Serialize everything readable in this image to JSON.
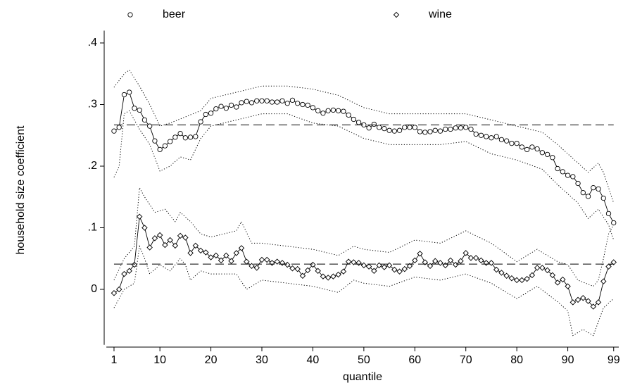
{
  "chart_data": {
    "type": "line",
    "x_label": "quantile",
    "y_label": "household size coefficient",
    "x": [
      1,
      2,
      3,
      4,
      5,
      6,
      7,
      8,
      9,
      10,
      11,
      12,
      13,
      14,
      15,
      16,
      17,
      18,
      19,
      20,
      21,
      22,
      23,
      24,
      25,
      26,
      27,
      28,
      29,
      30,
      31,
      32,
      33,
      34,
      35,
      36,
      37,
      38,
      39,
      40,
      41,
      42,
      43,
      44,
      45,
      46,
      47,
      48,
      49,
      50,
      51,
      52,
      53,
      54,
      55,
      56,
      57,
      58,
      59,
      60,
      61,
      62,
      63,
      64,
      65,
      66,
      67,
      68,
      69,
      70,
      71,
      72,
      73,
      74,
      75,
      76,
      77,
      78,
      79,
      80,
      81,
      82,
      83,
      84,
      85,
      86,
      87,
      88,
      89,
      90,
      91,
      92,
      93,
      94,
      95,
      96,
      97,
      98,
      99
    ],
    "series": [
      {
        "name": "beer",
        "marker": "circle",
        "color": "#000000",
        "values": [
          0.257,
          0.263,
          0.316,
          0.32,
          0.294,
          0.291,
          0.275,
          0.265,
          0.241,
          0.227,
          0.233,
          0.24,
          0.247,
          0.253,
          0.246,
          0.247,
          0.248,
          0.272,
          0.284,
          0.286,
          0.293,
          0.297,
          0.294,
          0.299,
          0.296,
          0.303,
          0.305,
          0.303,
          0.306,
          0.306,
          0.306,
          0.304,
          0.304,
          0.306,
          0.302,
          0.307,
          0.302,
          0.3,
          0.299,
          0.295,
          0.29,
          0.286,
          0.29,
          0.291,
          0.29,
          0.289,
          0.283,
          0.276,
          0.271,
          0.267,
          0.262,
          0.268,
          0.263,
          0.261,
          0.258,
          0.257,
          0.258,
          0.263,
          0.263,
          0.263,
          0.256,
          0.255,
          0.256,
          0.258,
          0.257,
          0.26,
          0.26,
          0.262,
          0.262,
          0.263,
          0.26,
          0.252,
          0.25,
          0.248,
          0.246,
          0.248,
          0.243,
          0.241,
          0.237,
          0.237,
          0.231,
          0.227,
          0.231,
          0.228,
          0.222,
          0.219,
          0.214,
          0.196,
          0.191,
          0.185,
          0.183,
          0.172,
          0.157,
          0.151,
          0.165,
          0.163,
          0.148,
          0.123,
          0.108
        ]
      },
      {
        "name": "wine",
        "marker": "diamond",
        "color": "#000000",
        "values": [
          -0.006,
          0,
          0.025,
          0.03,
          0.04,
          0.118,
          0.1,
          0.068,
          0.083,
          0.088,
          0.072,
          0.08,
          0.071,
          0.087,
          0.084,
          0.059,
          0.071,
          0.063,
          0.06,
          0.052,
          0.055,
          0.047,
          0.055,
          0.046,
          0.059,
          0.067,
          0.045,
          0.038,
          0.035,
          0.048,
          0.048,
          0.043,
          0.045,
          0.043,
          0.04,
          0.034,
          0.033,
          0.022,
          0.031,
          0.04,
          0.03,
          0.021,
          0.019,
          0.021,
          0.024,
          0.029,
          0.045,
          0.044,
          0.043,
          0.039,
          0.037,
          0.03,
          0.039,
          0.036,
          0.039,
          0.032,
          0.029,
          0.033,
          0.038,
          0.047,
          0.058,
          0.044,
          0.038,
          0.046,
          0.043,
          0.039,
          0.047,
          0.04,
          0.046,
          0.059,
          0.051,
          0.051,
          0.047,
          0.043,
          0.043,
          0.032,
          0.027,
          0.022,
          0.018,
          0.015,
          0.015,
          0.017,
          0.023,
          0.035,
          0.035,
          0.031,
          0.023,
          0.011,
          0.016,
          0.005,
          -0.021,
          -0.017,
          -0.014,
          -0.019,
          -0.028,
          -0.021,
          0.013,
          0.037,
          0.044
        ]
      },
      {
        "style": "dotted",
        "color": "#000000",
        "x": [
          1,
          3,
          4,
          6,
          8,
          10,
          12,
          15,
          18,
          20,
          25,
          30,
          35,
          40,
          45,
          50,
          55,
          60,
          65,
          70,
          75,
          80,
          85,
          88,
          90,
          92,
          94,
          96,
          97,
          99
        ],
        "values": [
          0.328,
          0.35,
          0.356,
          0.33,
          0.3,
          0.265,
          0.27,
          0.28,
          0.29,
          0.31,
          0.32,
          0.33,
          0.33,
          0.325,
          0.315,
          0.295,
          0.285,
          0.285,
          0.285,
          0.285,
          0.275,
          0.265,
          0.255,
          0.235,
          0.22,
          0.205,
          0.19,
          0.205,
          0.19,
          0.14
        ]
      },
      {
        "style": "dotted",
        "color": "#000000",
        "x": [
          1,
          2,
          3,
          4,
          6,
          8,
          10,
          12,
          14,
          16,
          18,
          20,
          25,
          30,
          35,
          40,
          45,
          50,
          55,
          60,
          65,
          70,
          75,
          80,
          85,
          88,
          90,
          92,
          94,
          96,
          98,
          99
        ],
        "values": [
          0.182,
          0.2,
          0.285,
          0.29,
          0.26,
          0.235,
          0.192,
          0.2,
          0.215,
          0.21,
          0.245,
          0.265,
          0.275,
          0.285,
          0.285,
          0.27,
          0.265,
          0.245,
          0.235,
          0.235,
          0.235,
          0.24,
          0.22,
          0.21,
          0.195,
          0.17,
          0.155,
          0.14,
          0.115,
          0.13,
          0.105,
          0.08
        ]
      },
      {
        "style": "dotted",
        "color": "#000000",
        "x": [
          1,
          3,
          5,
          6,
          7,
          9,
          11,
          13,
          14,
          16,
          18,
          20,
          25,
          26,
          28,
          30,
          35,
          40,
          45,
          48,
          50,
          55,
          60,
          65,
          70,
          75,
          80,
          84,
          88,
          90,
          92,
          95,
          96,
          97,
          98,
          99
        ],
        "values": [
          0.015,
          0.05,
          0.07,
          0.165,
          0.15,
          0.125,
          0.13,
          0.11,
          0.125,
          0.11,
          0.09,
          0.085,
          0.095,
          0.11,
          0.075,
          0.075,
          0.07,
          0.065,
          0.055,
          0.07,
          0.065,
          0.06,
          0.08,
          0.075,
          0.095,
          0.075,
          0.045,
          0.065,
          0.045,
          0.04,
          0.015,
          0.005,
          0.015,
          0.05,
          0.09,
          0.105
        ]
      },
      {
        "style": "dotted",
        "color": "#000000",
        "x": [
          1,
          3,
          5,
          6,
          7,
          8,
          10,
          12,
          14,
          15,
          16,
          18,
          20,
          25,
          27,
          30,
          35,
          40,
          45,
          48,
          50,
          55,
          60,
          65,
          70,
          75,
          80,
          84,
          88,
          90,
          91,
          93,
          95,
          97,
          99
        ],
        "values": [
          -0.03,
          0,
          0.01,
          0.07,
          0.05,
          0.025,
          0.04,
          0.03,
          0.05,
          0.04,
          0.015,
          0.03,
          0.025,
          0.025,
          0,
          0.015,
          0.01,
          0.005,
          -0.005,
          0.015,
          0.01,
          0.005,
          0.02,
          0.015,
          0.025,
          0.01,
          -0.015,
          0.005,
          -0.02,
          -0.035,
          -0.075,
          -0.065,
          -0.075,
          -0.03,
          -0.015
        ]
      },
      {
        "style": "dashed",
        "color": "#000000",
        "x": [
          1,
          99
        ],
        "values": [
          0.267,
          0.267
        ]
      },
      {
        "style": "dashed",
        "color": "#000000",
        "x": [
          1,
          99
        ],
        "values": [
          0.041,
          0.041
        ]
      }
    ],
    "xlim": [
      -0.5,
      100
    ],
    "xticks": [
      1,
      10,
      20,
      30,
      40,
      50,
      60,
      70,
      80,
      90,
      99
    ],
    "ylim": [
      -0.09,
      0.42
    ],
    "yticks": [
      {
        "value": 0,
        "label": "0"
      },
      {
        "value": 0.1,
        "label": ".1"
      },
      {
        "value": 0.2,
        "label": ".2"
      },
      {
        "value": 0.3,
        "label": ".3"
      },
      {
        "value": 0.4,
        "label": ".4"
      }
    ]
  }
}
